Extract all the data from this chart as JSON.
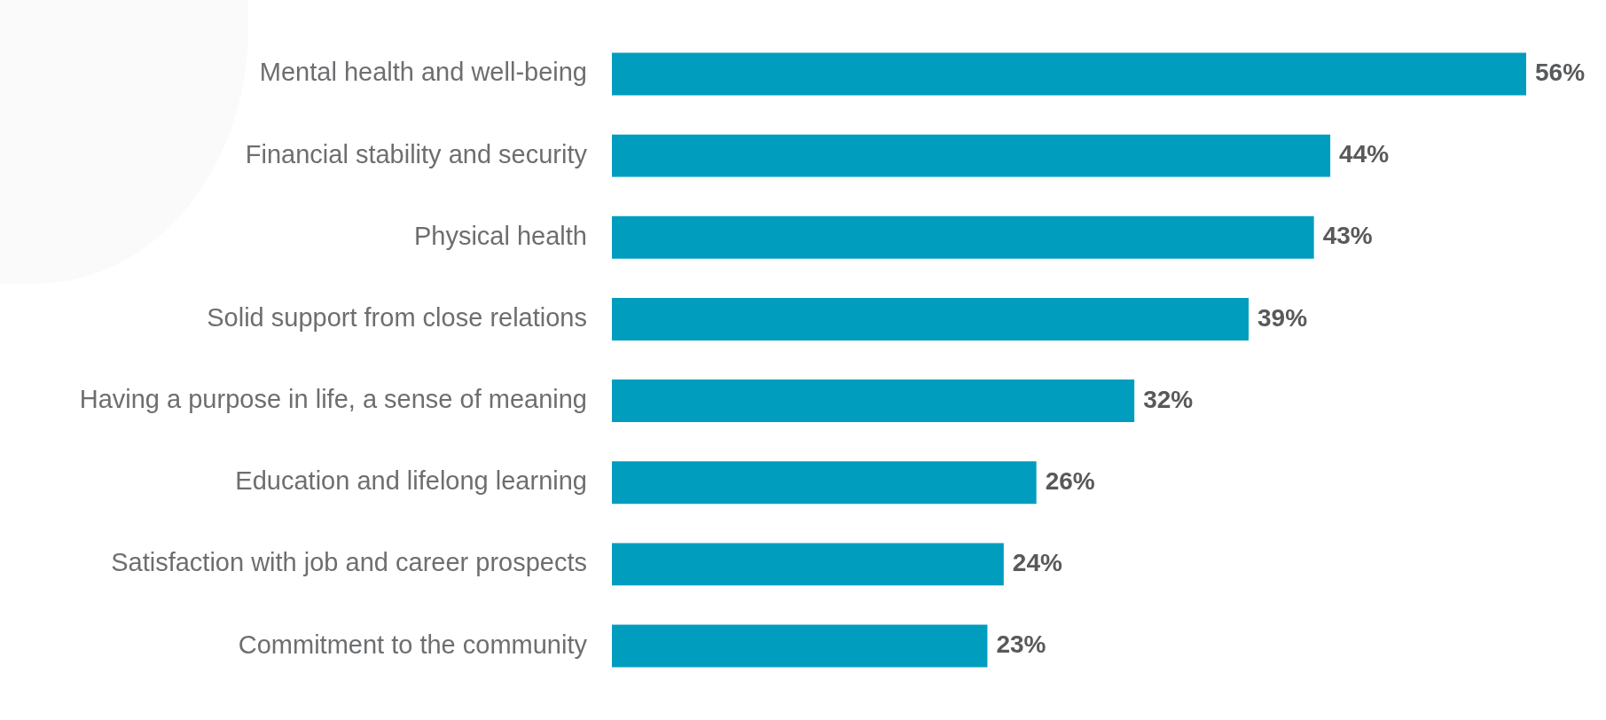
{
  "chart_data": {
    "type": "bar",
    "orientation": "horizontal",
    "categories": [
      "Mental health and well-being",
      "Financial stability and security",
      "Physical health",
      "Solid support from close relations",
      "Having a purpose in life, a sense of meaning",
      "Education and lifelong learning",
      "Satisfaction with job and career prospects",
      "Commitment to the community"
    ],
    "values": [
      56,
      44,
      43,
      39,
      32,
      26,
      24,
      23
    ],
    "value_labels": [
      "56%",
      "44%",
      "43%",
      "39%",
      "32%",
      "26%",
      "24%",
      "23%"
    ],
    "color": "#009dbf"
  }
}
